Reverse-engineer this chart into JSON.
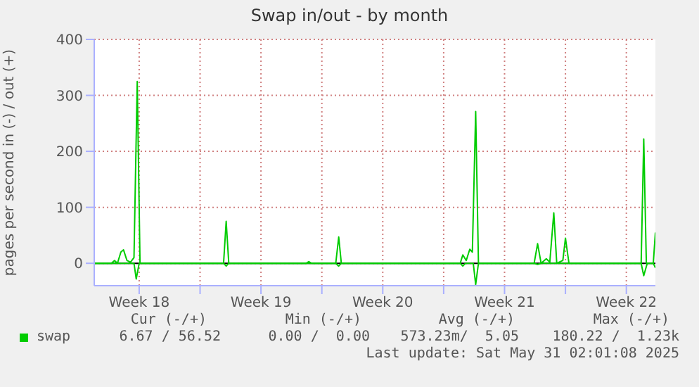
{
  "chart_data": {
    "type": "line",
    "title": "Swap in/out - by month",
    "ylabel": "pages per second in (-) / out (+)",
    "xlim": [
      "2025-04-28T22:00",
      "2025-05-31T04:05"
    ],
    "xticks": [
      {
        "value": "2025-05-01T12:00",
        "label": "Week 18"
      },
      {
        "value": "2025-05-05T00:00",
        "label": null
      },
      {
        "value": "2025-05-08T12:00",
        "label": "Week 19"
      },
      {
        "value": "2025-05-12T00:00",
        "label": null
      },
      {
        "value": "2025-05-15T12:00",
        "label": "Week 20"
      },
      {
        "value": "2025-05-19T00:00",
        "label": null
      },
      {
        "value": "2025-05-22T12:00",
        "label": "Week 21"
      },
      {
        "value": "2025-05-26T00:00",
        "label": null
      },
      {
        "value": "2025-05-29T12:00",
        "label": "Week 22"
      }
    ],
    "ylim": [
      -40,
      400
    ],
    "yticks": [
      0,
      100,
      200,
      300,
      400
    ],
    "grid": true,
    "legend": "bottom",
    "ref_lines": [
      {
        "axis": "y",
        "value": 0,
        "color": "#000000"
      }
    ],
    "series": [
      {
        "name": "swap",
        "color": "#00cc00",
        "x": [
          "2025-04-28T22:00",
          "2025-04-29T21:30",
          "2025-04-30T02:00",
          "2025-04-30T06:00",
          "2025-04-30T10:45",
          "2025-04-30T14:25",
          "2025-04-30T19:10",
          "2025-05-01T00:00",
          "2025-05-01T04:50",
          "2025-05-01T09:20",
          "2025-05-01T13:10",
          "2025-05-06T08:25",
          "2025-05-06T12:00",
          "2025-05-06T15:35",
          "2025-05-11T02:25",
          "2025-05-11T06:00",
          "2025-05-11T09:35",
          "2025-05-12T19:10",
          "2025-05-12T23:15",
          "2025-05-13T02:50",
          "2025-05-19T22:50",
          "2025-05-20T02:25",
          "2025-05-20T07:10",
          "2025-05-20T12:00",
          "2025-05-20T15:35",
          "2025-05-20T20:10",
          "2025-05-21T00:00",
          "2025-05-24T04:50",
          "2025-05-24T09:35",
          "2025-05-24T14:25",
          "2025-05-24T21:35",
          "2025-05-25T02:25",
          "2025-05-25T07:55",
          "2025-05-25T12:00",
          "2025-05-25T20:25",
          "2025-05-26T00:00",
          "2025-05-26T04:50",
          "2025-05-30T08:25",
          "2025-05-30T12:00",
          "2025-05-30T15:35",
          "2025-05-31T01:10",
          "2025-05-31T04:05"
        ],
        "values": [
          0,
          0,
          5,
          0,
          20,
          24,
          5,
          2,
          10,
          325,
          0,
          0,
          75,
          0,
          0,
          3,
          0,
          0,
          47,
          0,
          0,
          15,
          5,
          25,
          20,
          271,
          0,
          0,
          35,
          0,
          8,
          2,
          90,
          0,
          5,
          45,
          0,
          0,
          222,
          0,
          0,
          55
        ]
      },
      {
        "color": "#00cc00",
        "x": [
          "2025-04-28T22:00",
          "2025-05-01T04:50",
          "2025-05-01T07:55",
          "2025-05-01T12:00",
          "2025-05-06T08:25",
          "2025-05-06T12:00",
          "2025-05-06T15:35",
          "2025-05-12T19:10",
          "2025-05-12T23:15",
          "2025-05-13T02:50",
          "2025-05-19T22:50",
          "2025-05-20T02:25",
          "2025-05-20T06:00",
          "2025-05-20T16:50",
          "2025-05-20T20:10",
          "2025-05-21T00:00",
          "2025-05-24T04:50",
          "2025-05-24T09:35",
          "2025-05-24T14:25",
          "2025-05-30T08:25",
          "2025-05-30T12:00",
          "2025-05-30T16:50",
          "2025-05-31T01:10",
          "2025-05-31T04:05"
        ],
        "values": [
          0,
          0,
          -28,
          0,
          0,
          -5,
          0,
          0,
          -5,
          0,
          0,
          -5,
          0,
          0,
          -38,
          0,
          0,
          -2,
          0,
          0,
          -22,
          0,
          0,
          -8
        ]
      }
    ],
    "annotations": [
      "Cur (-/+)",
      "Min (-/+)",
      "Avg (-/+)",
      "Max (-/+)",
      "6.67 / 56.52",
      "0.00 /  0.00",
      "573.23m/  5.05",
      "180.22 /  1.23k",
      "Last update: Sat May 31 02:01:08 2025"
    ]
  }
}
